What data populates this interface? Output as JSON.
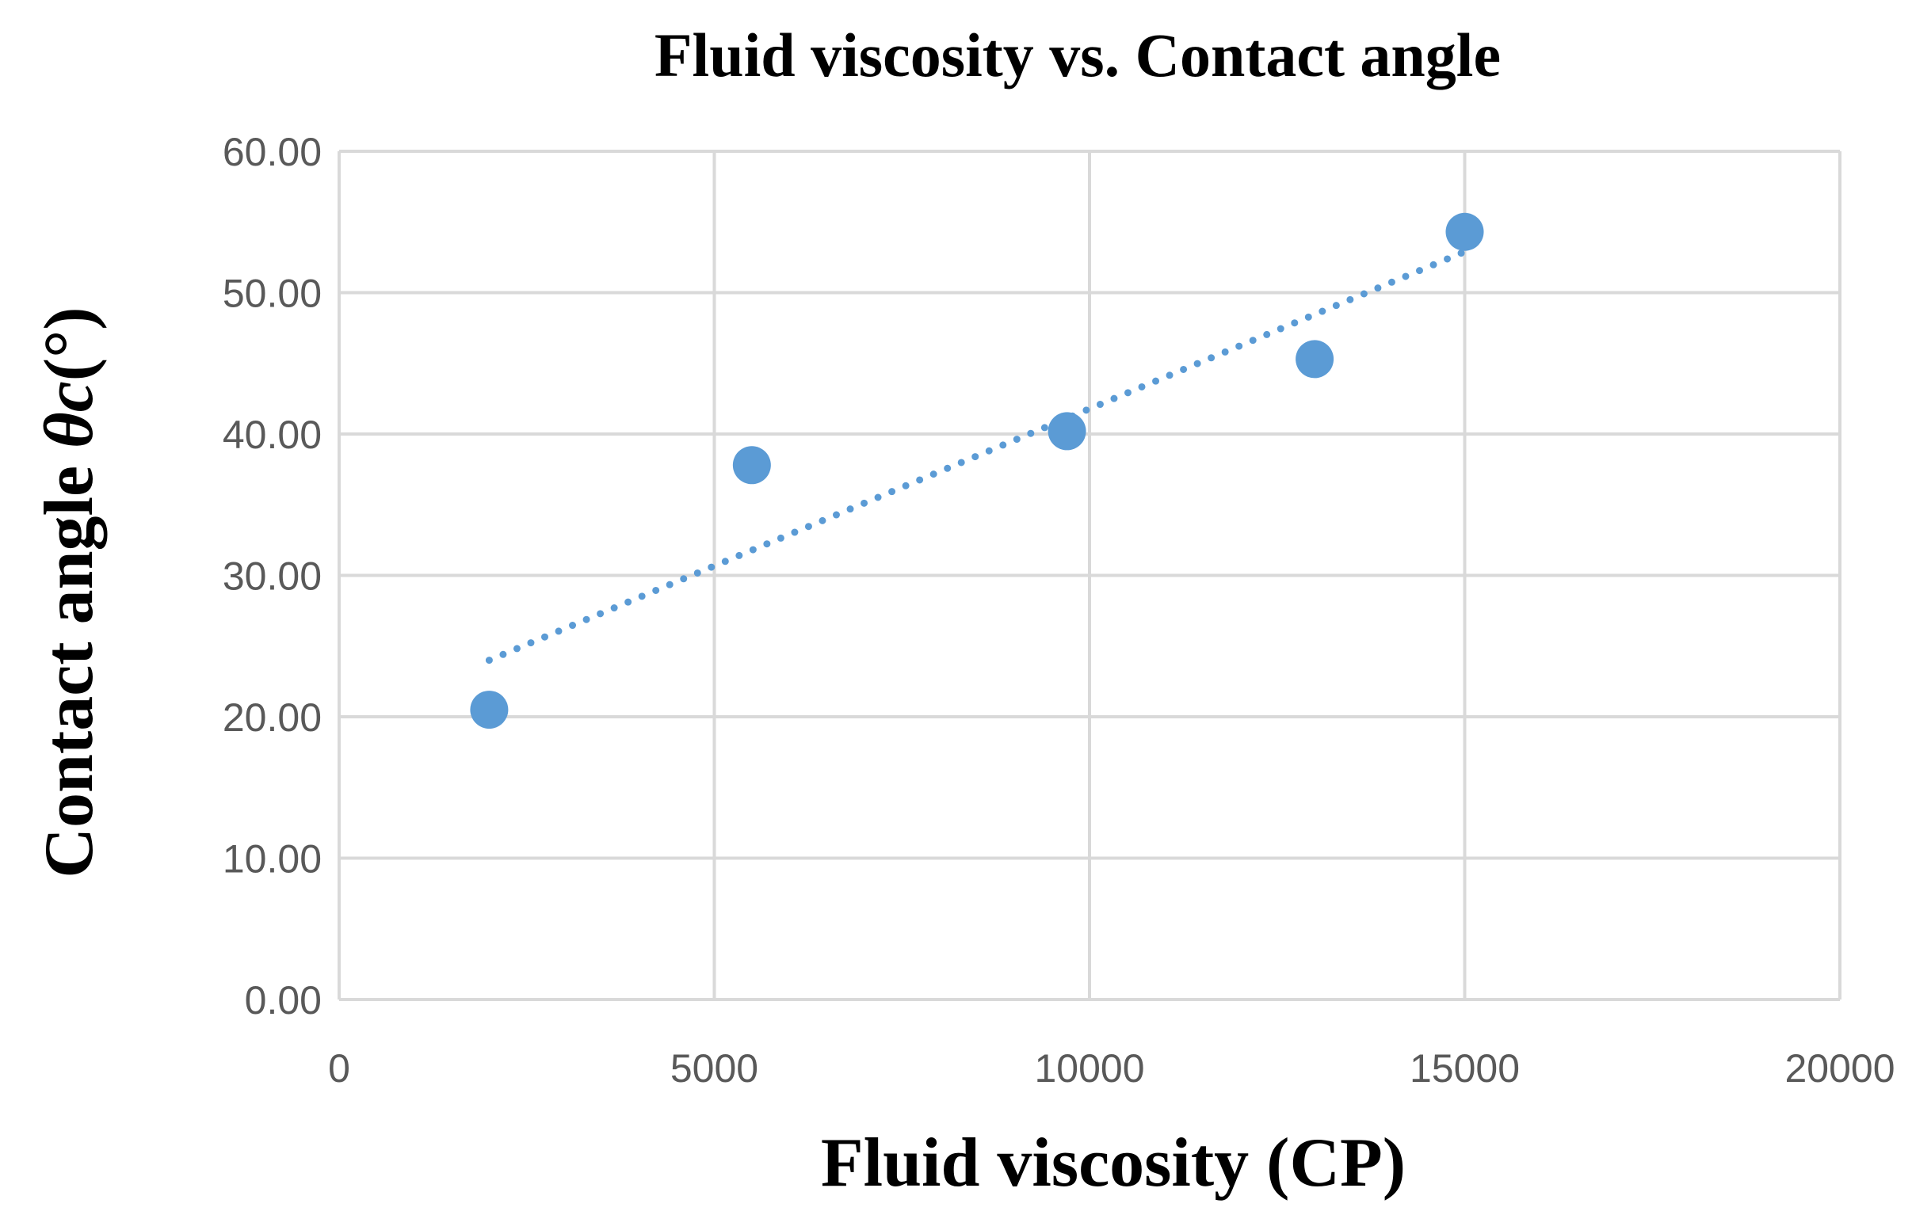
{
  "chart_data": {
    "type": "scatter",
    "title": "Fluid viscosity vs. Contact angle",
    "xlabel": "Fluid viscosity (CP)",
    "ylabel_main": "Contact angle ",
    "ylabel_symbol": "θc",
    "ylabel_unit": "(°)",
    "xlim": [
      0,
      20000
    ],
    "ylim": [
      0,
      60
    ],
    "x_ticks": [
      0,
      5000,
      10000,
      15000,
      20000
    ],
    "x_tick_labels": [
      "0",
      "5000",
      "10000",
      "15000",
      "20000"
    ],
    "y_ticks": [
      0,
      10,
      20,
      30,
      40,
      50,
      60
    ],
    "y_tick_labels": [
      "0.00",
      "10.00",
      "20.00",
      "30.00",
      "40.00",
      "50.00",
      "60.00"
    ],
    "grid": true,
    "legend": "none",
    "series": [
      {
        "name": "Contact angle",
        "color": "#5b9bd5",
        "x": [
          2000,
          5500,
          9700,
          13000,
          15000
        ],
        "y": [
          20.5,
          37.8,
          40.2,
          45.3,
          54.3
        ]
      }
    ],
    "trendline": {
      "type": "linear",
      "style": "dotted",
      "color": "#5b9bd5",
      "x": [
        2000,
        15000
      ],
      "y": [
        24.0,
        52.9
      ]
    }
  }
}
